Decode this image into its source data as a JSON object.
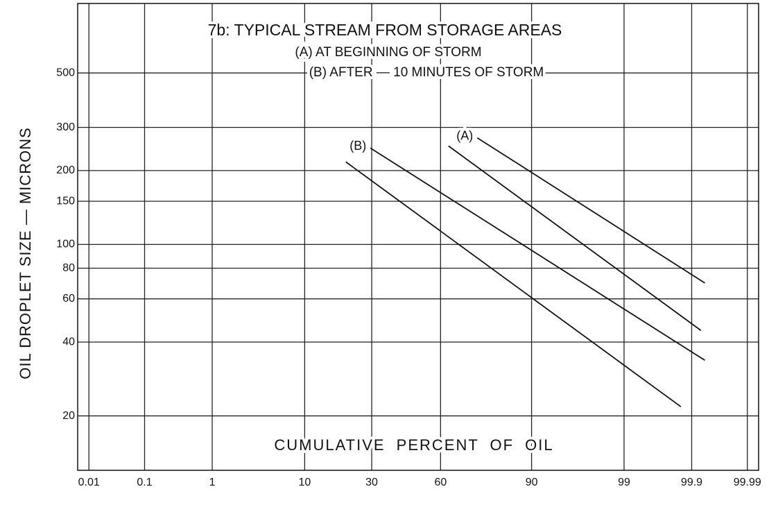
{
  "chart_data": {
    "type": "line",
    "title": "7b: TYPICAL STREAM FROM STORAGE AREAS",
    "subtitle": [
      "(A) AT BEGINNING OF STORM",
      "(B) AFTER — 10 MINUTES OF STORM"
    ],
    "x_label": "CUMULATIVE PERCENT OF OIL",
    "y_label": "OIL DROPLET SIZE — MICRONS",
    "xscale": "probability",
    "yscale": "log",
    "grid": true,
    "xlim": [
      0.006,
      99.994
    ],
    "ylim": [
      12,
      960
    ],
    "xticks": [
      0.01,
      0.1,
      1,
      10,
      30,
      60,
      90,
      99,
      99.9,
      99.99
    ],
    "yticks": [
      20,
      40,
      60,
      80,
      100,
      150,
      200,
      300,
      500
    ],
    "series": [
      {
        "name": "(A)",
        "color": "#111111",
        "lines": [
          {
            "x": [
              74.8,
              99.94
            ],
            "values": [
              272,
              69.6
            ]
          },
          {
            "x": [
              63.4,
              99.93
            ],
            "values": [
              252,
              44.6
            ]
          }
        ]
      },
      {
        "name": "(B)",
        "color": "#111111",
        "lines": [
          {
            "x": [
              29.5,
              99.94
            ],
            "values": [
              247,
              33.7
            ]
          },
          {
            "x": [
              20.7,
              99.85
            ],
            "values": [
              217,
              21.8
            ]
          }
        ]
      }
    ]
  }
}
